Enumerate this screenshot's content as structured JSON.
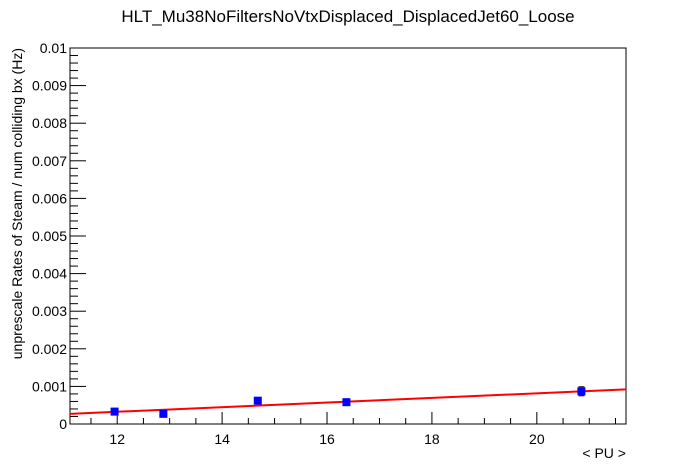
{
  "chart_data": {
    "type": "scatter",
    "title": "HLT_Mu38NoFiltersNoVtxDisplaced_DisplacedJet60_Loose",
    "xlabel": "< PU >",
    "ylabel": "unprescale Rates of Steam / num colliding bx (Hz)",
    "xlim": [
      11.1,
      21.7
    ],
    "ylim": [
      0,
      0.01
    ],
    "x_ticks": [
      12,
      14,
      16,
      18,
      20
    ],
    "x_tick_labels": [
      "12",
      "14",
      "16",
      "18",
      "20"
    ],
    "y_ticks": [
      0,
      0.001,
      0.002,
      0.003,
      0.004,
      0.005,
      0.006,
      0.007,
      0.008,
      0.009,
      0.01
    ],
    "y_tick_labels": [
      "0",
      "0.001",
      "0.002",
      "0.003",
      "0.004",
      "0.005",
      "0.006",
      "0.007",
      "0.008",
      "0.009",
      "0.01"
    ],
    "grid": false,
    "series": [
      {
        "color": "#0000ff",
        "points": [
          {
            "x": 11.95,
            "y": 0.00033,
            "err": 4e-05
          },
          {
            "x": 12.88,
            "y": 0.00027,
            "err": 4e-05
          },
          {
            "x": 14.68,
            "y": 0.00062,
            "err": 6e-05
          },
          {
            "x": 16.37,
            "y": 0.00058,
            "err": 6e-05
          },
          {
            "x": 20.85,
            "y": 0.00087,
            "err": 0.00012
          }
        ]
      }
    ],
    "fit": {
      "color": "#ff0000",
      "x": [
        11.1,
        21.7
      ],
      "y": [
        0.00027,
        0.00092
      ]
    }
  }
}
